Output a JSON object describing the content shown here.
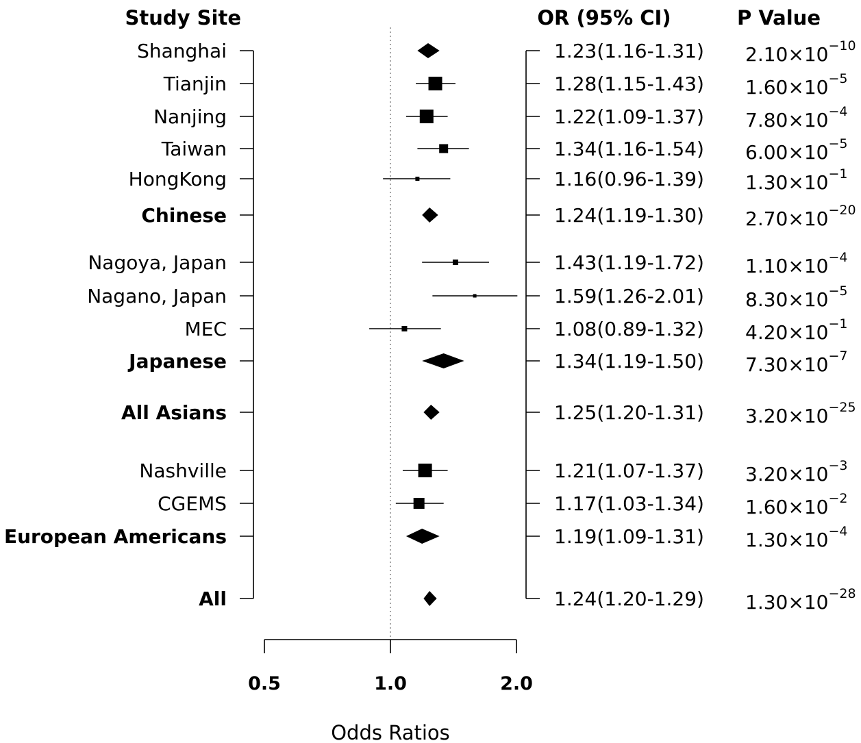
{
  "headers": {
    "study_site": "Study Site",
    "or_ci": "OR (95% CI)",
    "p_value": "P Value"
  },
  "chart_data": {
    "type": "forest",
    "xlabel": "Odds Ratios",
    "x_scale": "log",
    "xlim": [
      0.5,
      2.0
    ],
    "x_ticks": [
      {
        "value": 0.5,
        "label": "0.5"
      },
      {
        "value": 1.0,
        "label": "1.0"
      },
      {
        "value": 2.0,
        "label": "2.0"
      }
    ],
    "reference_line": 1.0,
    "rows": [
      {
        "label": "Shanghai",
        "or": 1.23,
        "lower": 1.16,
        "upper": 1.31,
        "or_ci_text": "1.23(1.16-1.31)",
        "p_mantissa": "2.10",
        "p_exponent": "−10",
        "marker": "diamond",
        "bold": false
      },
      {
        "label": "Tianjin",
        "or": 1.28,
        "lower": 1.15,
        "upper": 1.43,
        "or_ci_text": "1.28(1.15-1.43)",
        "p_mantissa": "1.60",
        "p_exponent": "−5",
        "marker": "square",
        "bold": false
      },
      {
        "label": "Nanjing",
        "or": 1.22,
        "lower": 1.09,
        "upper": 1.37,
        "or_ci_text": "1.22(1.09-1.37)",
        "p_mantissa": "7.80",
        "p_exponent": "−4",
        "marker": "square",
        "bold": false
      },
      {
        "label": "Taiwan",
        "or": 1.34,
        "lower": 1.16,
        "upper": 1.54,
        "or_ci_text": "1.34(1.16-1.54)",
        "p_mantissa": "6.00",
        "p_exponent": "−5",
        "marker": "square",
        "bold": false
      },
      {
        "label": "HongKong",
        "or": 1.16,
        "lower": 0.96,
        "upper": 1.39,
        "or_ci_text": "1.16(0.96-1.39)",
        "p_mantissa": "1.30",
        "p_exponent": "−1",
        "marker": "square",
        "bold": false
      },
      {
        "label": "Chinese",
        "or": 1.24,
        "lower": 1.19,
        "upper": 1.3,
        "or_ci_text": "1.24(1.19-1.30)",
        "p_mantissa": "2.70",
        "p_exponent": "−20",
        "marker": "diamond",
        "bold": true
      },
      {
        "label": "Nagoya, Japan",
        "or": 1.43,
        "lower": 1.19,
        "upper": 1.72,
        "or_ci_text": "1.43(1.19-1.72)",
        "p_mantissa": "1.10",
        "p_exponent": "−4",
        "marker": "square",
        "bold": false
      },
      {
        "label": "Nagano, Japan",
        "or": 1.59,
        "lower": 1.26,
        "upper": 2.01,
        "or_ci_text": "1.59(1.26-2.01)",
        "p_mantissa": "8.30",
        "p_exponent": "−5",
        "marker": "square",
        "bold": false
      },
      {
        "label": "MEC",
        "or": 1.08,
        "lower": 0.89,
        "upper": 1.32,
        "or_ci_text": "1.08(0.89-1.32)",
        "p_mantissa": "4.20",
        "p_exponent": "−1",
        "marker": "square",
        "bold": false
      },
      {
        "label": "Japanese",
        "or": 1.34,
        "lower": 1.19,
        "upper": 1.5,
        "or_ci_text": "1.34(1.19-1.50)",
        "p_mantissa": "7.30",
        "p_exponent": "−7",
        "marker": "diamond",
        "bold": true
      },
      {
        "label": "All Asians",
        "or": 1.25,
        "lower": 1.2,
        "upper": 1.31,
        "or_ci_text": "1.25(1.20-1.31)",
        "p_mantissa": "3.20",
        "p_exponent": "−25",
        "marker": "diamond",
        "bold": true
      },
      {
        "label": "Nashville",
        "or": 1.21,
        "lower": 1.07,
        "upper": 1.37,
        "or_ci_text": "1.21(1.07-1.37)",
        "p_mantissa": "3.20",
        "p_exponent": "−3",
        "marker": "square",
        "bold": false
      },
      {
        "label": "CGEMS",
        "or": 1.17,
        "lower": 1.03,
        "upper": 1.34,
        "or_ci_text": "1.17(1.03-1.34)",
        "p_mantissa": "1.60",
        "p_exponent": "−2",
        "marker": "square",
        "bold": false
      },
      {
        "label": "European Americans",
        "or": 1.19,
        "lower": 1.09,
        "upper": 1.31,
        "or_ci_text": "1.19(1.09-1.31)",
        "p_mantissa": "1.30",
        "p_exponent": "−4",
        "marker": "diamond",
        "bold": true
      },
      {
        "label": "All",
        "or": 1.24,
        "lower": 1.2,
        "upper": 1.29,
        "or_ci_text": "1.24(1.20-1.29)",
        "p_mantissa": "1.30",
        "p_exponent": "−28",
        "marker": "diamond",
        "bold": true
      }
    ]
  }
}
